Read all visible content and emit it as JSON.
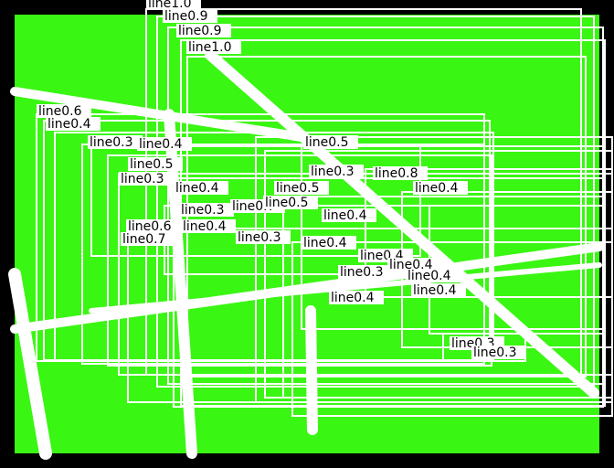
{
  "background_color": "#000000",
  "field_color": "#3af613",
  "box_color": "#ffffff",
  "label_text_color": "#000000",
  "labels": [
    {
      "id": "l1",
      "text": "line1.0"
    },
    {
      "id": "l2",
      "text": "line0.9"
    },
    {
      "id": "l3",
      "text": "line0.9"
    },
    {
      "id": "l4",
      "text": "line1.0"
    },
    {
      "id": "l5",
      "text": "line0.6"
    },
    {
      "id": "l6",
      "text": "line0.4"
    },
    {
      "id": "l7",
      "text": "line0.3"
    },
    {
      "id": "l8",
      "text": "line0.4"
    },
    {
      "id": "l9",
      "text": "line0.5"
    },
    {
      "id": "l10",
      "text": "line0.3"
    },
    {
      "id": "l11",
      "text": "line0.4"
    },
    {
      "id": "l12",
      "text": "line0.3"
    },
    {
      "id": "l13",
      "text": "line0.7"
    },
    {
      "id": "l14",
      "text": "line0.6"
    },
    {
      "id": "l15",
      "text": "line0.4"
    },
    {
      "id": "l16",
      "text": "line0.7"
    },
    {
      "id": "l17",
      "text": "line0.3"
    },
    {
      "id": "l18",
      "text": "line0.5"
    },
    {
      "id": "l19",
      "text": "line0.5"
    },
    {
      "id": "l20",
      "text": "line0.3"
    },
    {
      "id": "l21",
      "text": "line0.5"
    },
    {
      "id": "l22",
      "text": "line0.4"
    },
    {
      "id": "l23",
      "text": "line0.4"
    },
    {
      "id": "l24",
      "text": "line0.4"
    },
    {
      "id": "l25",
      "text": "line0.4"
    },
    {
      "id": "l26",
      "text": "line0.3"
    },
    {
      "id": "l27",
      "text": "line0.4"
    },
    {
      "id": "l28",
      "text": "line0.4"
    },
    {
      "id": "l29",
      "text": "line0.4"
    },
    {
      "id": "l30",
      "text": "line0.4"
    },
    {
      "id": "l31",
      "text": "line0.3"
    },
    {
      "id": "l32",
      "text": "line0.3"
    },
    {
      "id": "l33",
      "text": "line0.8"
    }
  ]
}
